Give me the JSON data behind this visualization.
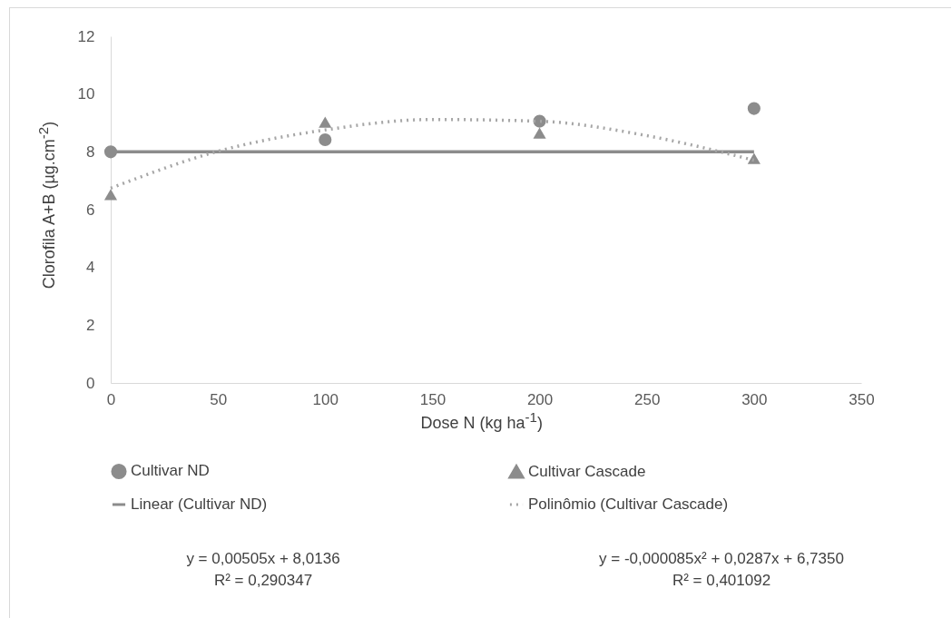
{
  "chart_data": {
    "type": "scatter",
    "xlabel": "Dose N (kg ha$^{-1}$)",
    "ylabel": "Clorofila A+B (µg.cm$^{-2}$)",
    "xlim": [
      0,
      350
    ],
    "xticks": [
      0,
      50,
      100,
      150,
      200,
      250,
      300,
      350
    ],
    "ylim": [
      0,
      12
    ],
    "yticks": [
      0,
      2,
      4,
      6,
      8,
      10,
      12
    ],
    "grid": false,
    "legend": "bottom",
    "series": [
      {
        "name": "Cultivar ND",
        "marker": "circle",
        "color": "#8c8c8c",
        "x": [
          0,
          100,
          200,
          300
        ],
        "values": [
          8.0,
          8.42,
          9.06,
          9.5
        ]
      },
      {
        "name": "Cultivar Cascade",
        "marker": "triangle",
        "color": "#8c8c8c",
        "x": [
          0,
          100,
          200,
          300
        ],
        "values": [
          6.52,
          9.03,
          8.65,
          7.77
        ]
      },
      {
        "name": "Linear (Cultivar ND)",
        "type": "line",
        "line_style": "solid",
        "color": "#8c8c8c",
        "x": [
          0,
          300
        ],
        "values": [
          8.0,
          8.0
        ]
      },
      {
        "name": "Polinômio (Cultivar Cascade)",
        "type": "line",
        "line_style": "dotted",
        "color": "#a6a6a6",
        "x": [
          0,
          50,
          100,
          150,
          200,
          250,
          300
        ],
        "values": [
          6.74,
          8.02,
          8.76,
          9.12,
          9.06,
          8.56,
          7.71
        ]
      }
    ],
    "annotations": [
      "y = 0,00505x + 8,0136",
      "R² =  0,290347",
      "y = -0,000085x² + 0,0287x + 6,7350",
      "R² = 0,401092"
    ]
  }
}
